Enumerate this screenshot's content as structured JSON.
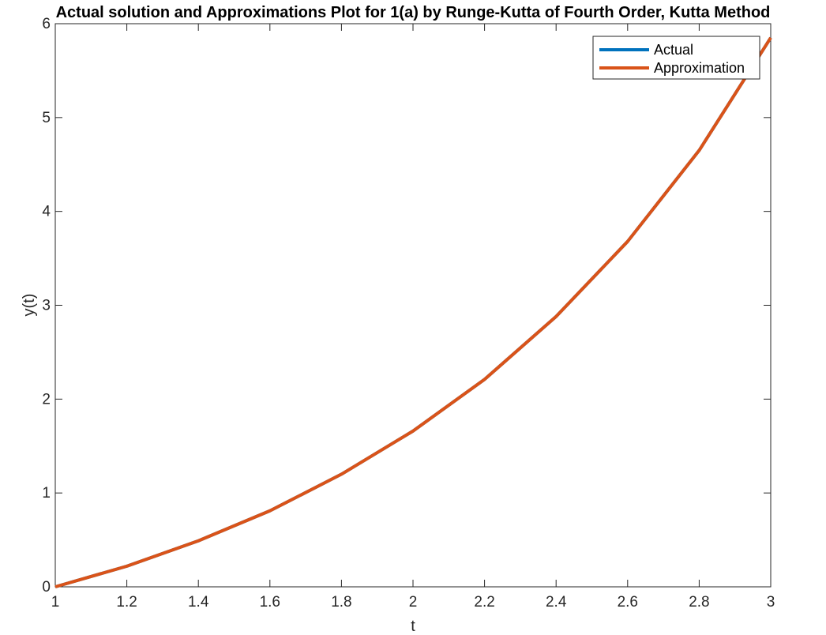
{
  "chart_data": {
    "type": "line",
    "title": "Actual solution and Approximations Plot for 1(a) by Runge-Kutta of Fourth Order, Kutta Method",
    "xlabel": "t",
    "ylabel": "y(t)",
    "xlim": [
      1,
      3
    ],
    "ylim": [
      0,
      6
    ],
    "xticks": [
      "1",
      "1.2",
      "1.4",
      "1.6",
      "1.8",
      "2",
      "2.2",
      "2.4",
      "2.6",
      "2.8",
      "3"
    ],
    "yticks": [
      "0",
      "1",
      "2",
      "3",
      "4",
      "5",
      "6"
    ],
    "x": [
      1.0,
      1.2,
      1.4,
      1.6,
      1.8,
      2.0,
      2.2,
      2.4,
      2.6,
      2.8,
      3.0
    ],
    "series": [
      {
        "name": "Actual",
        "color": "#0072BD",
        "values": [
          0.0,
          0.22,
          0.49,
          0.81,
          1.2,
          1.66,
          2.21,
          2.88,
          3.68,
          4.65,
          5.85
        ]
      },
      {
        "name": "Approximation",
        "color": "#D95319",
        "values": [
          0.0,
          0.22,
          0.49,
          0.81,
          1.2,
          1.66,
          2.21,
          2.88,
          3.68,
          4.65,
          5.85
        ]
      }
    ],
    "grid": false,
    "legend": "top-right",
    "box": true
  }
}
